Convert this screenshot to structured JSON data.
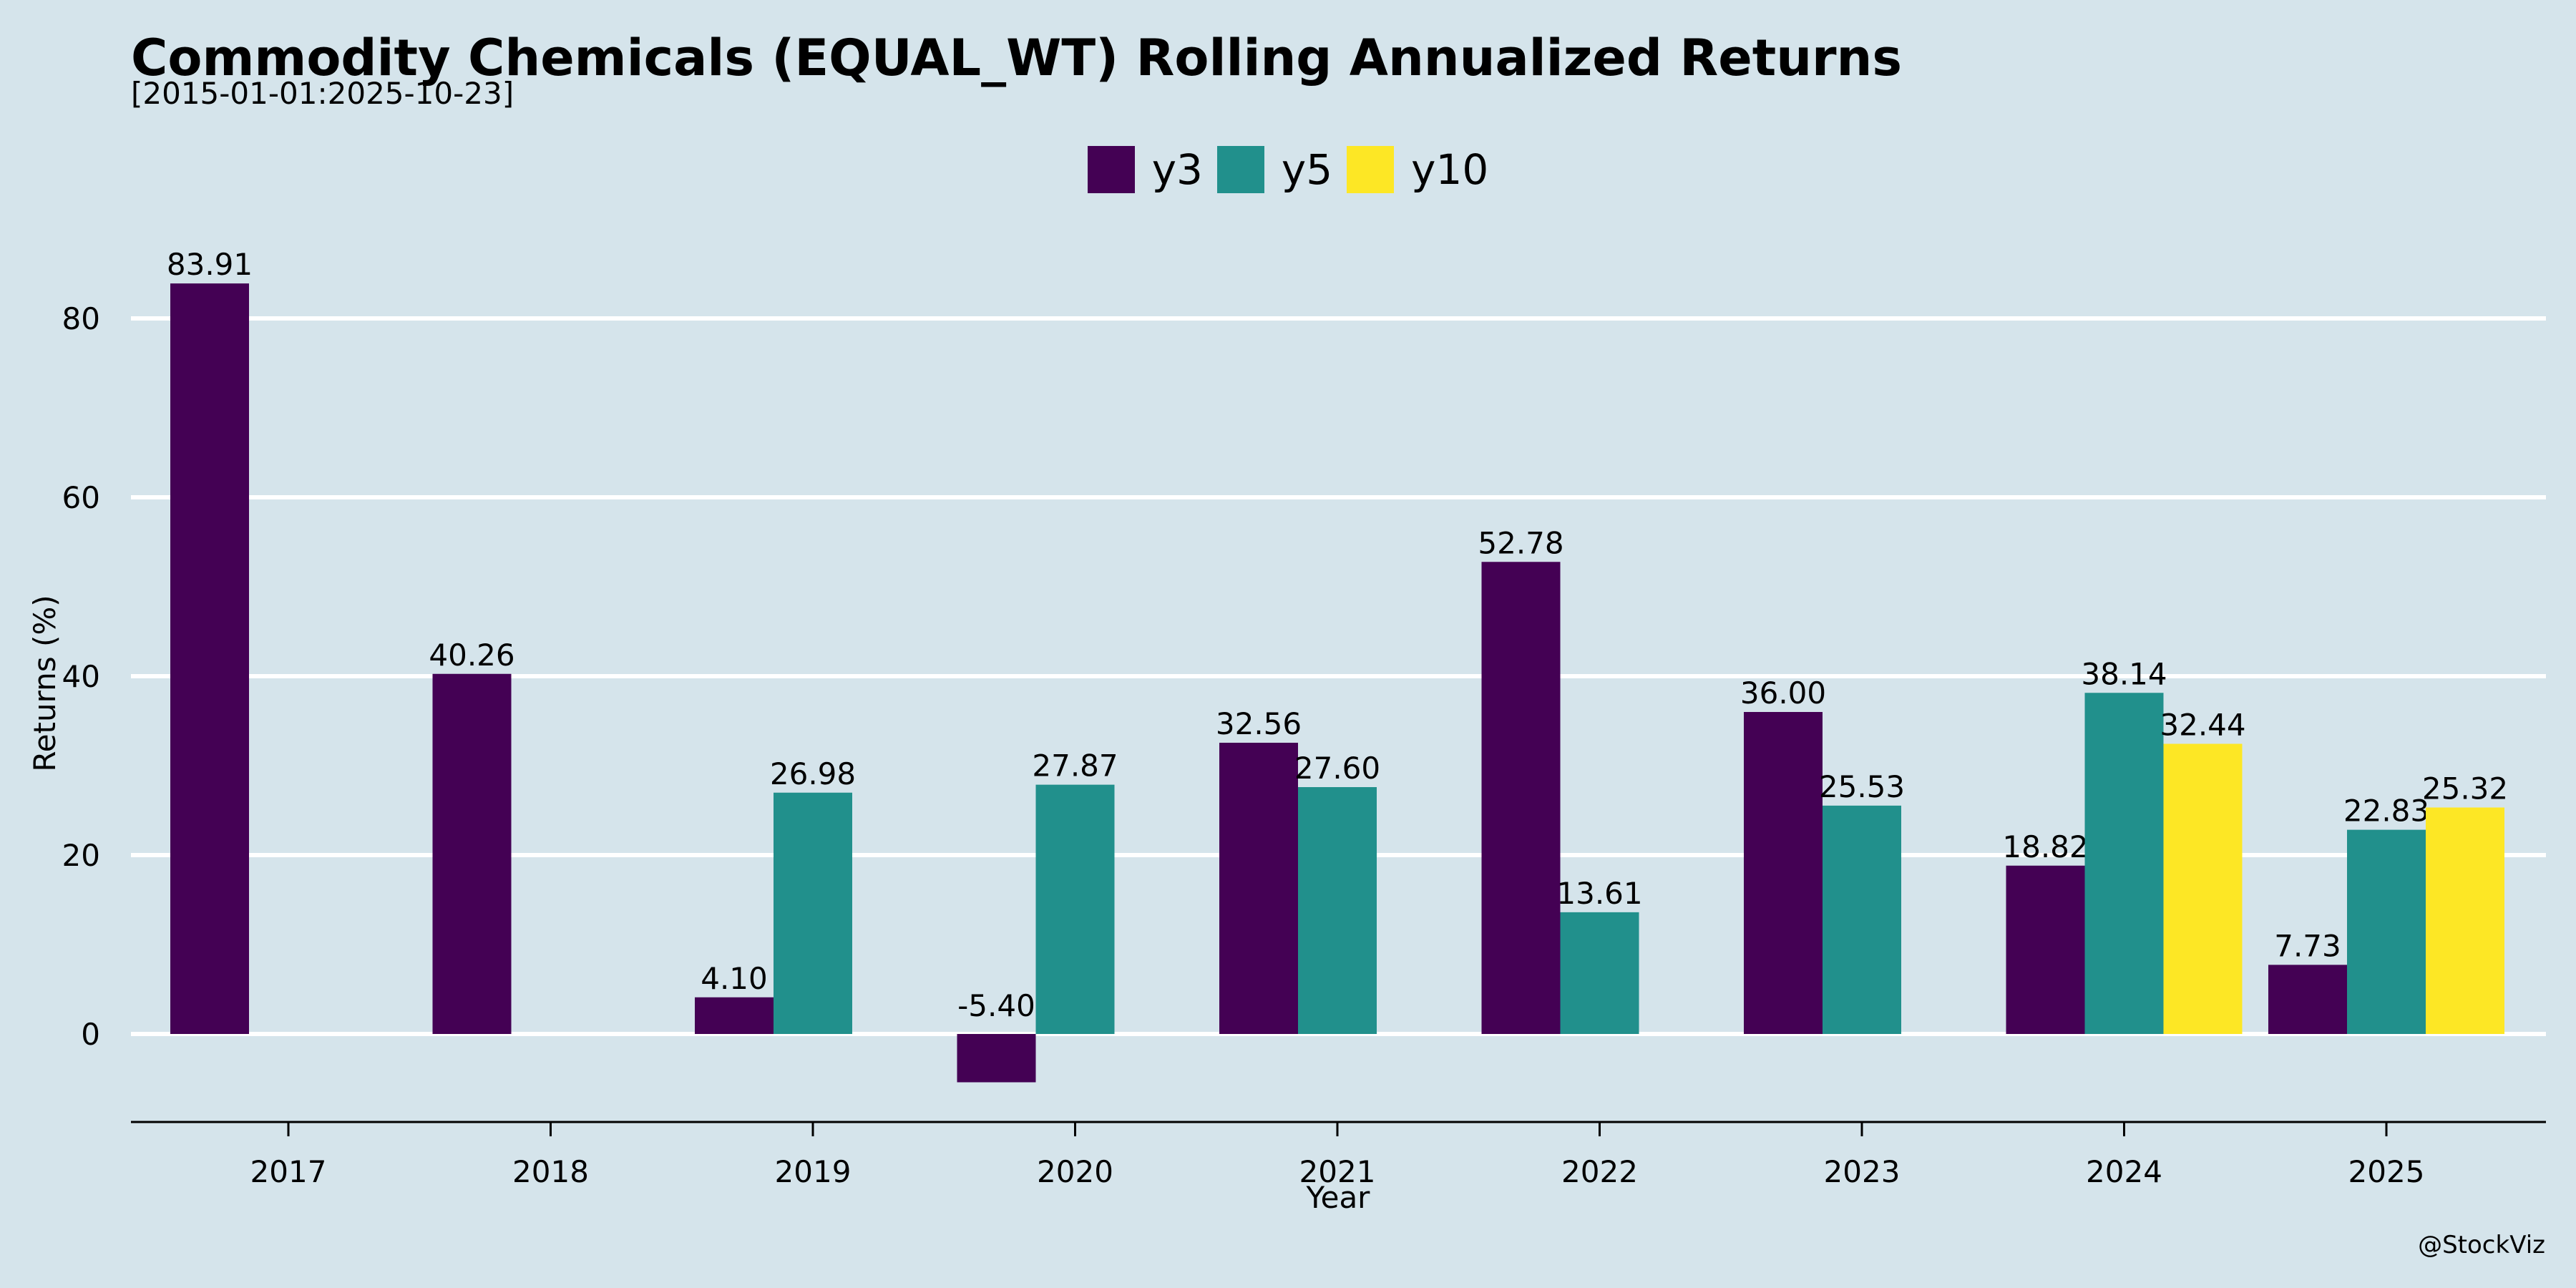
{
  "header": {
    "title": "Commodity Chemicals (EQUAL_WT) Rolling Annualized Returns",
    "subtitle": "[2015-01-01:2025-10-23]"
  },
  "footer": {
    "watermark": "@StockViz"
  },
  "colors": {
    "background": "#d5e4eb",
    "y3": "#440154",
    "y5": "#21908c",
    "y10": "#fde725",
    "grid": "#ffffff"
  },
  "chart_data": {
    "type": "bar",
    "xlabel": "Year",
    "ylabel": "Returns (%)",
    "ylim": [
      -10,
      84
    ],
    "yticks": [
      0,
      20,
      40,
      60,
      80
    ],
    "grid": true,
    "legend_position": "top-center",
    "categories": [
      "2017",
      "2018",
      "2019",
      "2020",
      "2021",
      "2022",
      "2023",
      "2024",
      "2025"
    ],
    "series": [
      {
        "name": "y3",
        "values": [
          83.91,
          40.26,
          4.1,
          -5.4,
          32.56,
          52.78,
          36.0,
          18.82,
          7.73
        ]
      },
      {
        "name": "y5",
        "values": [
          null,
          null,
          26.98,
          27.87,
          27.6,
          13.61,
          25.53,
          38.14,
          22.83
        ]
      },
      {
        "name": "y10",
        "values": [
          null,
          null,
          null,
          null,
          null,
          null,
          null,
          32.44,
          25.32
        ]
      }
    ]
  }
}
